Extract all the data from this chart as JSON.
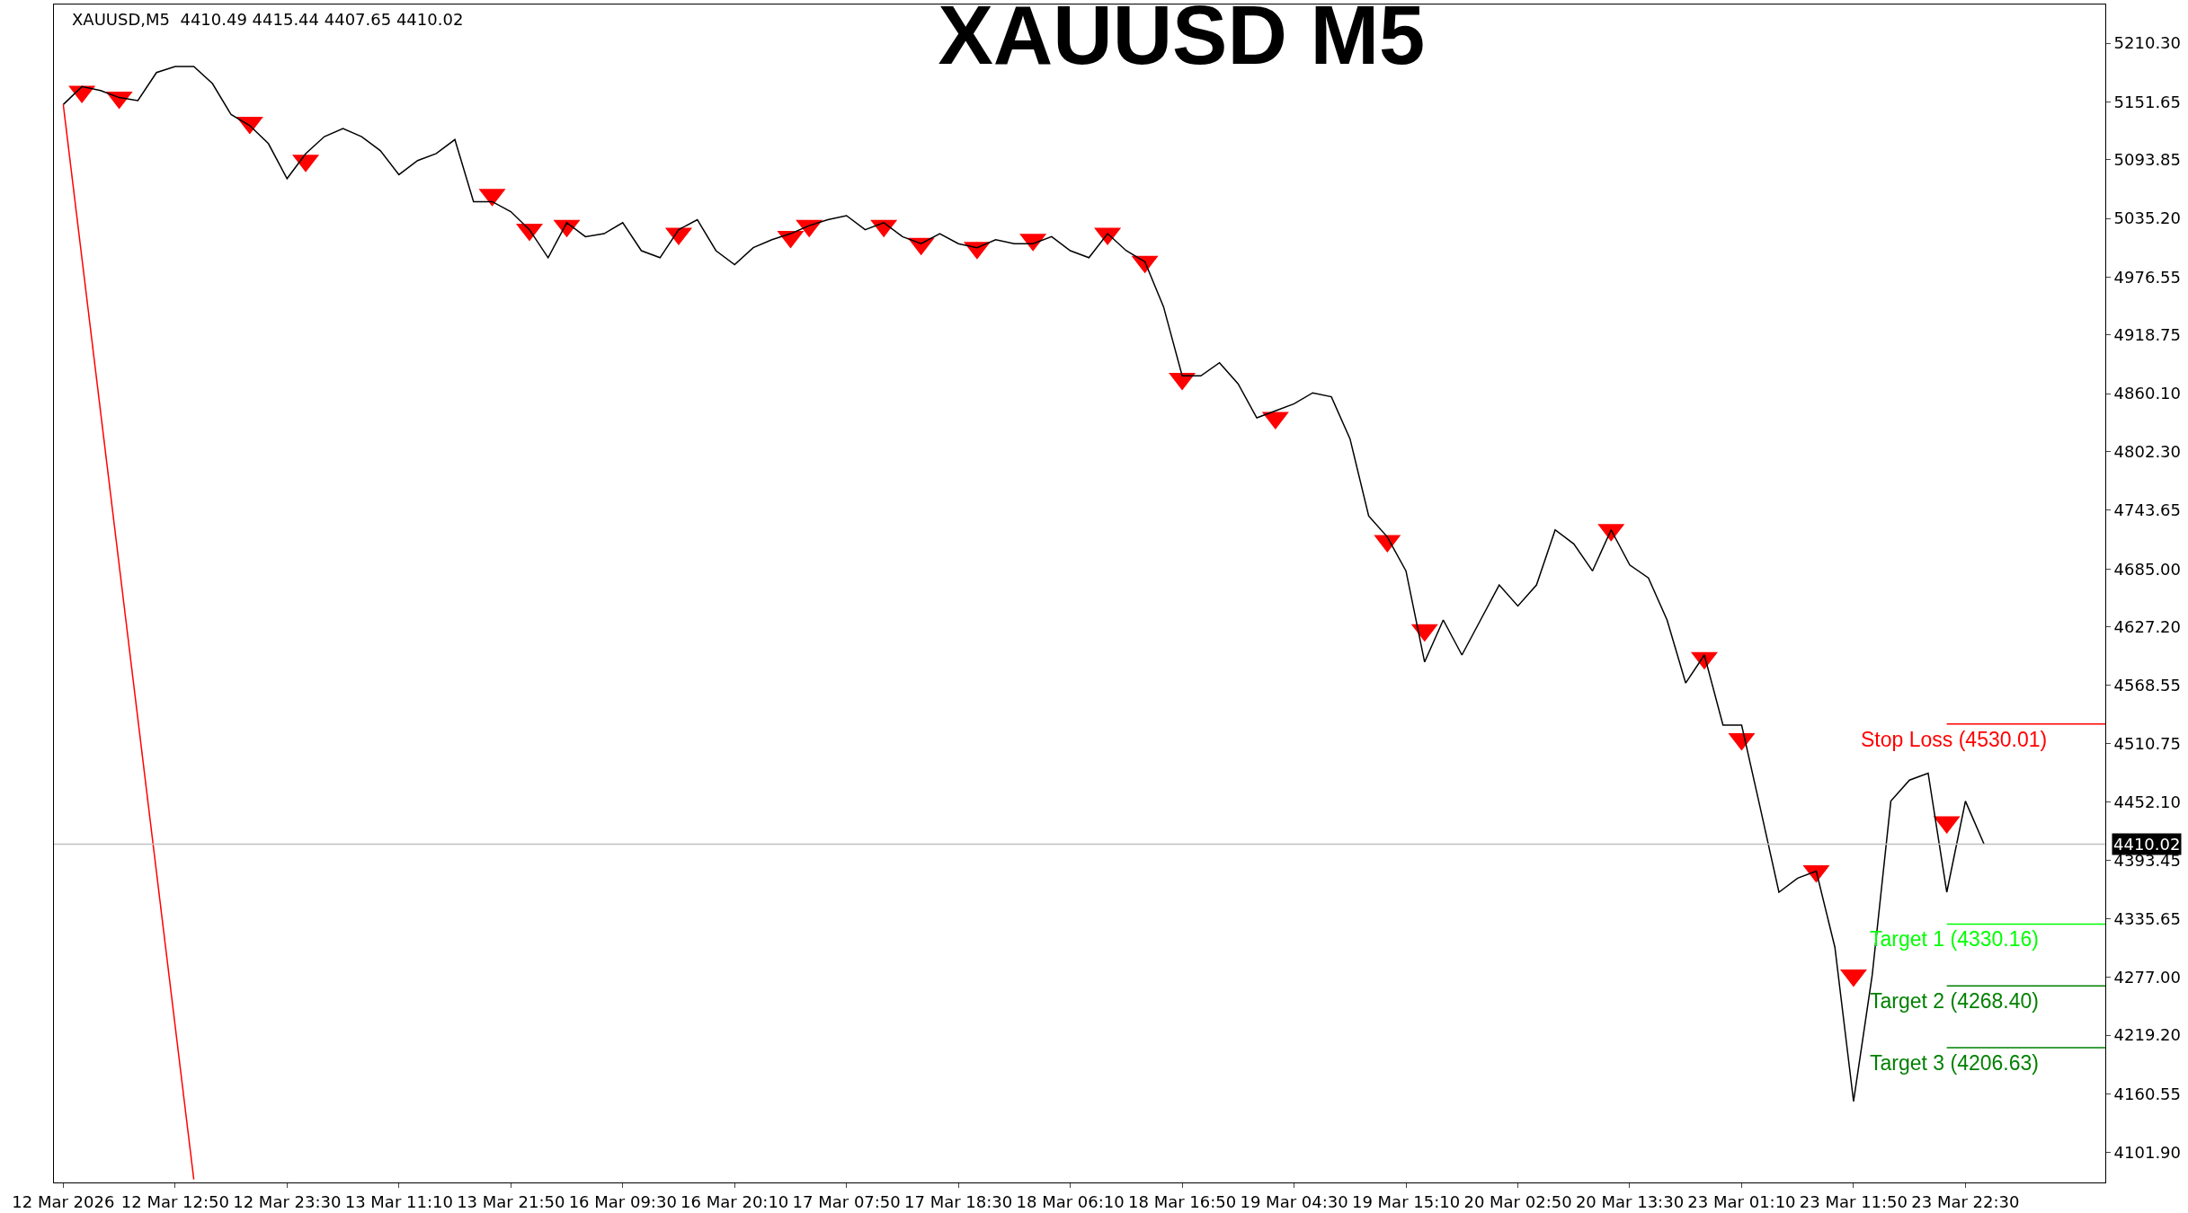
{
  "chart_data": {
    "type": "line",
    "title": "XAUUSD M5",
    "annotations": [
      "XAUUSD,M5  4410.49 4415.44 4407.65 4410.02"
    ],
    "categories": [
      "12 Mar 2026",
      null,
      null,
      null,
      null,
      null,
      "12 Mar 12:50",
      null,
      null,
      null,
      null,
      null,
      "12 Mar 23:30",
      null,
      null,
      null,
      null,
      null,
      "13 Mar 11:10",
      null,
      null,
      null,
      null,
      null,
      "13 Mar 21:50",
      null,
      null,
      null,
      null,
      null,
      "16 Mar 09:30",
      null,
      null,
      null,
      null,
      null,
      "16 Mar 20:10",
      null,
      null,
      null,
      null,
      null,
      "17 Mar 07:50",
      null,
      null,
      null,
      null,
      null,
      "17 Mar 18:30",
      null,
      null,
      null,
      null,
      null,
      "18 Mar 06:10",
      null,
      null,
      null,
      null,
      null,
      "18 Mar 16:50",
      null,
      null,
      null,
      null,
      null,
      "19 Mar 04:30",
      null,
      null,
      null,
      null,
      null,
      "19 Mar 15:10",
      null,
      null,
      null,
      null,
      null,
      "20 Mar 02:50",
      null,
      null,
      null,
      null,
      null,
      "20 Mar 13:30",
      null,
      null,
      null,
      null,
      null,
      "23 Mar 01:10",
      null,
      null,
      null,
      null,
      null,
      "23 Mar 11:50",
      null,
      null,
      null,
      null,
      null,
      "23 Mar 22:30",
      null,
      null,
      null,
      null,
      null,
      null,
      null
    ],
    "series": [
      {
        "color": "#000000",
        "marker": "none",
        "values": [
          5149,
          5167,
          5163,
          5156,
          5153,
          5181,
          5187,
          5187,
          5170,
          5139,
          5128,
          5110,
          5075,
          5100,
          5117,
          5125,
          5117,
          5103,
          5079,
          5093,
          5100,
          5114,
          5052,
          5052,
          5042,
          5024,
          4996,
          5031,
          5017,
          5020,
          5031,
          5003,
          4996,
          5024,
          5034,
          5003,
          4989,
          5006,
          5014,
          5020,
          5028,
          5034,
          5038,
          5024,
          5031,
          5017,
          5010,
          5020,
          5010,
          5006,
          5014,
          5010,
          5010,
          5017,
          5003,
          4996,
          5020,
          5003,
          4992,
          4947,
          4878,
          4878,
          4891,
          4870,
          4836,
          4843,
          4850,
          4861,
          4857,
          4815,
          4738,
          4717,
          4683,
          4592,
          4634,
          4599,
          4634,
          4669,
          4648,
          4669,
          4724,
          4710,
          4683,
          4724,
          4689,
          4676,
          4634,
          4571,
          4599,
          4529,
          4529,
          4446,
          4362,
          4376,
          4383,
          4307,
          4153,
          4279,
          4453,
          4474,
          4481,
          4362,
          4453,
          4410,
          null,
          null,
          null,
          null,
          null,
          null
        ]
      },
      {
        "type": "scatter",
        "color": "#ff0000",
        "marker": "triangle",
        "values": [
          null,
          5162,
          null,
          5156,
          null,
          null,
          null,
          null,
          null,
          null,
          5131,
          null,
          null,
          5093,
          null,
          null,
          null,
          null,
          null,
          null,
          null,
          null,
          null,
          5059,
          null,
          5024,
          null,
          5028,
          null,
          null,
          null,
          null,
          null,
          5020,
          null,
          null,
          null,
          null,
          null,
          5017,
          5028,
          null,
          null,
          null,
          5028,
          null,
          5010,
          null,
          null,
          5006,
          null,
          null,
          5014,
          null,
          null,
          null,
          5020,
          null,
          4992,
          null,
          4875,
          null,
          null,
          null,
          null,
          4836,
          null,
          null,
          null,
          null,
          null,
          4713,
          null,
          4624,
          null,
          null,
          null,
          null,
          null,
          null,
          null,
          null,
          null,
          4724,
          null,
          null,
          null,
          null,
          4596,
          null,
          4515,
          null,
          null,
          null,
          4383,
          null,
          4279,
          null,
          null,
          null,
          null,
          4432,
          null,
          null,
          null,
          null,
          null,
          null,
          null,
          null
        ]
      },
      {
        "type": "line",
        "color": "#ff0000",
        "marker": "none",
        "values": [
          5149,
          null,
          null,
          null,
          null,
          null,
          null,
          4075,
          null,
          null,
          null,
          null,
          null,
          null,
          null,
          null,
          null,
          null,
          null,
          null,
          null,
          null,
          null,
          null,
          null,
          null,
          null,
          null,
          null,
          null,
          null,
          null,
          null,
          null,
          null,
          null,
          null,
          null,
          null,
          null,
          null,
          null,
          null,
          null,
          null,
          null,
          null,
          null,
          null,
          null,
          null,
          null,
          null,
          null,
          null,
          null,
          null,
          null,
          null,
          null,
          null,
          null,
          null,
          null,
          null,
          null,
          null,
          null,
          null,
          null,
          null,
          null,
          null,
          null,
          null,
          null,
          null,
          null,
          null,
          null,
          null,
          null,
          null,
          null,
          null,
          null,
          null,
          null,
          null,
          null,
          null,
          null,
          null,
          null,
          null,
          null,
          null,
          null,
          null,
          null,
          null,
          null,
          null,
          null,
          null,
          null,
          null,
          null,
          null,
          null
        ]
      }
    ],
    "ylim": [
      4072,
      5249
    ],
    "yticks": [
      {
        "value": 5210.3,
        "label": "5210.30"
      },
      {
        "value": 5151.65,
        "label": "5151.65"
      },
      {
        "value": 5093.85,
        "label": "5093.85"
      },
      {
        "value": 5035.2,
        "label": "5035.20"
      },
      {
        "value": 4976.55,
        "label": "4976.55"
      },
      {
        "value": 4918.75,
        "label": "4918.75"
      },
      {
        "value": 4860.1,
        "label": "4860.10"
      },
      {
        "value": 4802.3,
        "label": "4802.30"
      },
      {
        "value": 4743.65,
        "label": "4743.65"
      },
      {
        "value": 4685,
        "label": "4685.00"
      },
      {
        "value": 4627.2,
        "label": "4627.20"
      },
      {
        "value": 4568.55,
        "label": "4568.55"
      },
      {
        "value": 4510.75,
        "label": "4510.75"
      },
      {
        "value": 4452.1,
        "label": "4452.10"
      },
      {
        "value": 4393.45,
        "label": "4393.45"
      },
      {
        "value": 4335.65,
        "label": "4335.65"
      },
      {
        "value": 4277,
        "label": "4277.00"
      },
      {
        "value": 4219.2,
        "label": "4219.20"
      },
      {
        "value": 4160.55,
        "label": "4160.55"
      },
      {
        "value": 4101.9,
        "label": "4101.90"
      }
    ],
    "ref_lines": [
      {
        "axis": "y",
        "value": 4530.01,
        "label": "Stop Loss (4530.01)",
        "color": "#ff0000"
      },
      {
        "axis": "y",
        "value": 4330.16,
        "label": "Target 1 (4330.16)",
        "color": "#00ff00"
      },
      {
        "axis": "y",
        "value": 4268.4,
        "label": "Target 2 (4268.40)",
        "color": "#008000"
      },
      {
        "axis": "y",
        "value": 4206.63,
        "label": "Target 3 (4206.63)",
        "color": "#008000"
      },
      {
        "axis": "y",
        "value": 4410.02,
        "label": "4410.02",
        "color": "#c0c0c0"
      }
    ],
    "grid": false
  }
}
